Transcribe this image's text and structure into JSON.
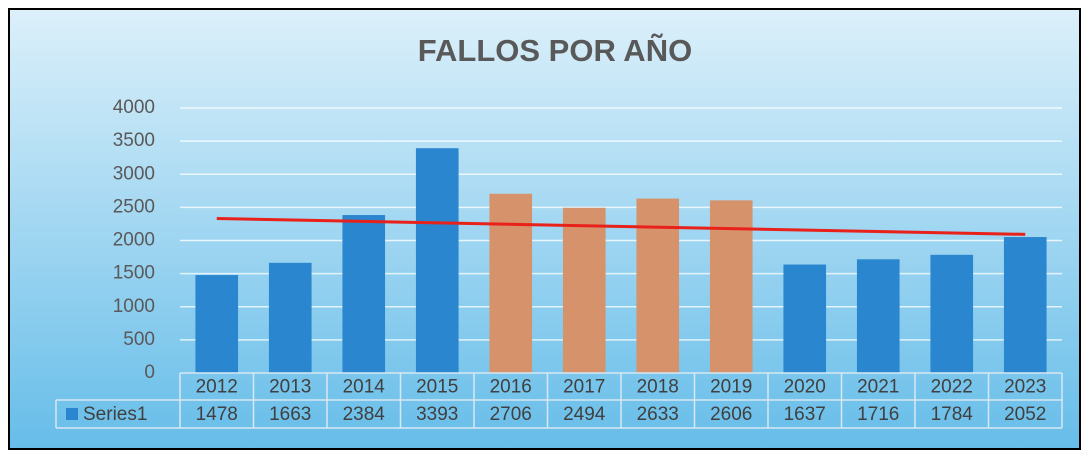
{
  "chart_data": {
    "type": "bar",
    "title": "FALLOS POR AÑO",
    "categories": [
      "2012",
      "2013",
      "2014",
      "2015",
      "2016",
      "2017",
      "2018",
      "2019",
      "2020",
      "2021",
      "2022",
      "2023"
    ],
    "series": [
      {
        "name": "Series1",
        "color": "#2a86cf",
        "colors": [
          "#2a86cf",
          "#2a86cf",
          "#2a86cf",
          "#2a86cf",
          "#d5926b",
          "#d5926b",
          "#d5926b",
          "#d5926b",
          "#2a86cf",
          "#2a86cf",
          "#2a86cf",
          "#2a86cf"
        ],
        "values": [
          1478,
          1663,
          2384,
          3393,
          2706,
          2494,
          2633,
          2606,
          1637,
          1716,
          1784,
          2052
        ]
      }
    ],
    "trendline": {
      "type": "linear",
      "color": "#e8221a"
    },
    "ylim": [
      0,
      4000
    ],
    "yticks": [
      0,
      500,
      1000,
      1500,
      2000,
      2500,
      3000,
      3500,
      4000
    ],
    "grid": true,
    "data_table": true
  }
}
